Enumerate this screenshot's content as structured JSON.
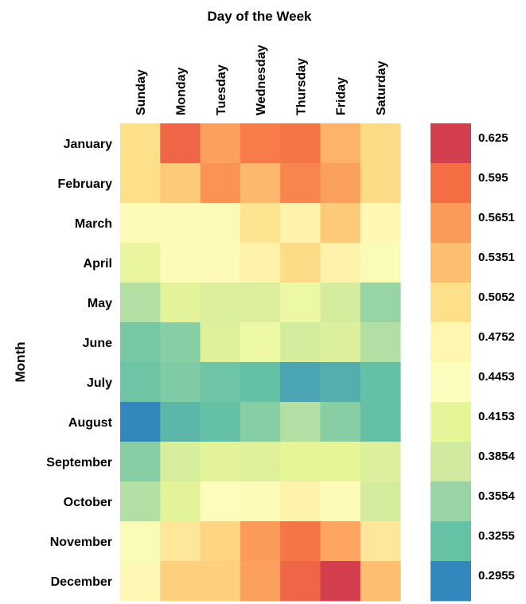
{
  "chart_data": {
    "type": "heatmap",
    "title": "",
    "xlabel": "Day of the Week",
    "ylabel": "Month",
    "x_categories": [
      "Sunday",
      "Monday",
      "Tuesday",
      "Wednesday",
      "Thursday",
      "Friday",
      "Saturday"
    ],
    "y_categories": [
      "January",
      "February",
      "March",
      "April",
      "May",
      "June",
      "July",
      "August",
      "September",
      "October",
      "November",
      "December"
    ],
    "values": [
      [
        0.505,
        0.6,
        0.56,
        0.585,
        0.59,
        0.545,
        0.51
      ],
      [
        0.505,
        0.525,
        0.57,
        0.54,
        0.58,
        0.56,
        0.51
      ],
      [
        0.46,
        0.455,
        0.46,
        0.5,
        0.48,
        0.525,
        0.47
      ],
      [
        0.42,
        0.455,
        0.455,
        0.48,
        0.51,
        0.48,
        0.44
      ],
      [
        0.37,
        0.41,
        0.4,
        0.4,
        0.425,
        0.39,
        0.355
      ],
      [
        0.335,
        0.345,
        0.405,
        0.425,
        0.39,
        0.4,
        0.37
      ],
      [
        0.33,
        0.34,
        0.33,
        0.325,
        0.31,
        0.315,
        0.325
      ],
      [
        0.29,
        0.32,
        0.325,
        0.345,
        0.37,
        0.345,
        0.325
      ],
      [
        0.345,
        0.395,
        0.41,
        0.405,
        0.415,
        0.415,
        0.4
      ],
      [
        0.37,
        0.41,
        0.45,
        0.46,
        0.48,
        0.455,
        0.39
      ],
      [
        0.44,
        0.495,
        0.515,
        0.565,
        0.59,
        0.555,
        0.495
      ],
      [
        0.465,
        0.52,
        0.52,
        0.56,
        0.6,
        0.625,
        0.535
      ]
    ],
    "colorbar": {
      "ticks": [
        "0.625",
        "0.595",
        "0.5651",
        "0.5351",
        "0.5052",
        "0.4752",
        "0.4453",
        "0.4153",
        "0.3854",
        "0.3554",
        "0.3255",
        "0.2955"
      ],
      "colors": [
        "#d53e4f",
        "#f46d43",
        "#fc9a59",
        "#fdbf6f",
        "#fee08b",
        "#fff6b0",
        "#fdfdbe",
        "#e6f598",
        "#d0ea9f",
        "#99d5a4",
        "#66c2a5",
        "#3288bd"
      ]
    }
  }
}
